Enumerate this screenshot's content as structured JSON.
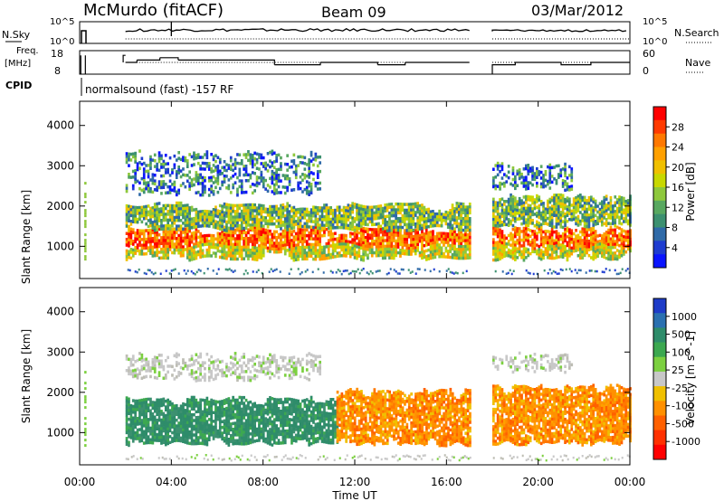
{
  "header": {
    "station": "McMurdo (fitACF)",
    "beam": "Beam 09",
    "date": "03/Mar/2012"
  },
  "status_panels": {
    "nsky_label": "N.Sky",
    "nsearch_label": "N.Search",
    "nsky_ticks": [
      "10^5",
      "10^0"
    ],
    "nsearch_ticks": [
      "10^5",
      "10^0"
    ],
    "freq_label": [
      "Freq.",
      "[MHz]"
    ],
    "freq_ticks": [
      "18",
      "8"
    ],
    "nave_label": "Nave",
    "nave_ticks": [
      "60",
      "0"
    ],
    "cpid_label": "CPID",
    "cpid_text": "normalsound (fast) -157 RF",
    "freq_range": [
      8,
      18
    ],
    "nave_range": [
      0,
      60
    ],
    "freq_steps": [
      {
        "t": 0.0,
        "v": 16
      },
      {
        "t": 0.25,
        "v": 16
      },
      {
        "t": 1.9,
        "v": 13
      },
      {
        "t": 2.5,
        "v": 14
      },
      {
        "t": 3.5,
        "v": 15
      },
      {
        "t": 4.3,
        "v": 14
      },
      {
        "t": 5.5,
        "v": 14
      },
      {
        "t": 6.5,
        "v": 14
      },
      {
        "t": 8.5,
        "v": 12
      },
      {
        "t": 10.5,
        "v": 13
      },
      {
        "t": 13.0,
        "v": 12
      },
      {
        "t": 14.2,
        "v": 13
      },
      {
        "t": 17.0,
        "v": 13
      }
    ],
    "nsky_level": 0.55,
    "gap": [
      17.0,
      18.0
    ]
  },
  "chart_data": [
    {
      "type": "heatmap",
      "name": "power",
      "ylabel": "Slant Range [km]",
      "ylim": [
        200,
        4600
      ],
      "yticks": [
        "4000",
        "3000",
        "2000",
        "1000"
      ],
      "ytick_values": [
        4000,
        3000,
        2000,
        1000
      ],
      "colorbar": {
        "label": "Power [dB]",
        "ticks": [
          "28",
          "24",
          "20",
          "16",
          "12",
          "8",
          "4"
        ],
        "colors": [
          "#ff0000",
          "#ff3a00",
          "#ff7800",
          "#ffa000",
          "#f0c000",
          "#c8d800",
          "#8ec83c",
          "#58a860",
          "#3c9070",
          "#2f6aa8",
          "#1e3cd0",
          "#0a14ff"
        ]
      },
      "bands": [
        {
          "t0": 2.0,
          "t1": 17.0,
          "r0": 700,
          "r1": 1500,
          "level": "strong"
        },
        {
          "t0": 2.0,
          "t1": 17.0,
          "r0": 1400,
          "r1": 2100,
          "level": "medium"
        },
        {
          "t0": 2.0,
          "t1": 10.5,
          "r0": 2300,
          "r1": 3400,
          "level": "weak"
        },
        {
          "t0": 18.0,
          "t1": 24.0,
          "r0": 700,
          "r1": 1500,
          "level": "strong"
        },
        {
          "t0": 18.0,
          "t1": 24.0,
          "r0": 1500,
          "r1": 2300,
          "level": "medium"
        },
        {
          "t0": 18.0,
          "t1": 21.5,
          "r0": 2400,
          "r1": 3100,
          "level": "weak"
        }
      ]
    },
    {
      "type": "heatmap",
      "name": "velocity",
      "ylabel": "Slant Range [km]",
      "ylim": [
        200,
        4600
      ],
      "yticks": [
        "4000",
        "3000",
        "2000",
        "1000"
      ],
      "ytick_values": [
        4000,
        3000,
        2000,
        1000
      ],
      "xlabel": "Time UT",
      "xticks": [
        "00:00",
        "04:00",
        "08:00",
        "12:00",
        "16:00",
        "20:00",
        "00:00"
      ],
      "xtick_values": [
        0,
        4,
        8,
        12,
        16,
        20,
        24
      ],
      "xlim": [
        0,
        24
      ],
      "colorbar": {
        "label": "Velocity [m s^-1]",
        "ticks": [
          "1000",
          "500",
          "100",
          "25",
          "-25",
          "-100",
          "-500",
          "-1000"
        ],
        "colors": [
          "#1e3cc8",
          "#2a70b0",
          "#2e8c6a",
          "#3ca850",
          "#7cd040",
          "#c8c8c8",
          "#f0c000",
          "#ff9000",
          "#ff6000",
          "#ff3000",
          "#ff0000"
        ]
      },
      "bands": [
        {
          "t0": 2.0,
          "t1": 11.2,
          "r0": 700,
          "r1": 1900,
          "sign": "positive"
        },
        {
          "t0": 11.2,
          "t1": 17.0,
          "r0": 700,
          "r1": 2100,
          "sign": "negative"
        },
        {
          "t0": 2.0,
          "t1": 10.5,
          "r0": 2300,
          "r1": 3000,
          "sign": "low"
        },
        {
          "t0": 18.0,
          "t1": 24.0,
          "r0": 700,
          "r1": 2200,
          "sign": "negative"
        },
        {
          "t0": 18.0,
          "t1": 21.5,
          "r0": 2500,
          "r1": 3000,
          "sign": "low"
        }
      ]
    }
  ]
}
